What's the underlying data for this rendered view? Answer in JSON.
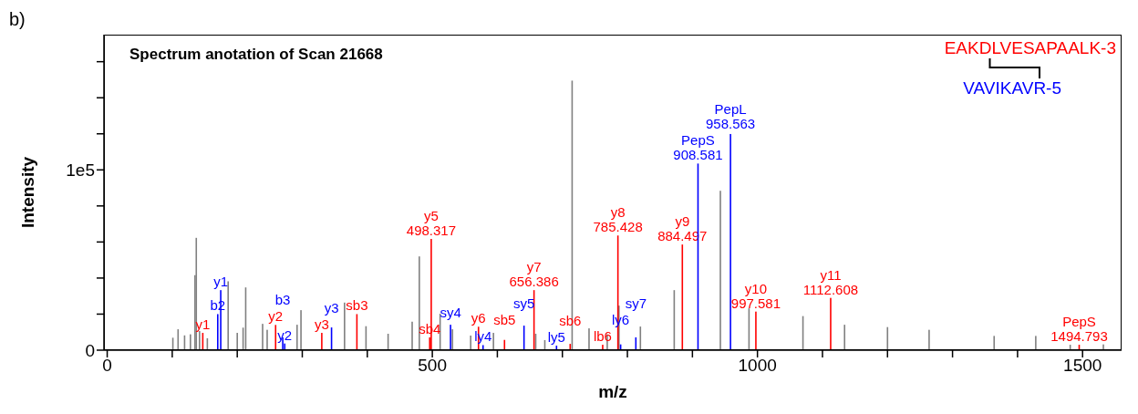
{
  "chart_data": {
    "type": "bar",
    "title": "Spectrum anotation of Scan 21668",
    "xlabel": "m/z",
    "ylabel": "Intensity",
    "annotations": [
      "b)"
    ],
    "legend": "top right",
    "xlim": [
      -5,
      1560
    ],
    "ylim": [
      0,
      175000
    ],
    "xticks": [
      0,
      {
        "value": 100,
        "label": null
      },
      {
        "value": 200,
        "label": null
      },
      {
        "value": 300,
        "label": null
      },
      {
        "value": 400,
        "label": null
      },
      500,
      {
        "value": 600,
        "label": null
      },
      {
        "value": 700,
        "label": null
      },
      {
        "value": 800,
        "label": null
      },
      {
        "value": 900,
        "label": null
      },
      1000,
      {
        "value": 1100,
        "label": null
      },
      {
        "value": 1200,
        "label": null
      },
      {
        "value": 1300,
        "label": null
      },
      {
        "value": 1400,
        "label": null
      },
      1500
    ],
    "yticks": [
      0,
      {
        "value": 20000,
        "label": null
      },
      {
        "value": 40000,
        "label": null
      },
      {
        "value": 60000,
        "label": null
      },
      {
        "value": 80000,
        "label": null
      },
      {
        "value": 100000,
        "label": "1e5"
      },
      {
        "value": 120000,
        "label": null
      },
      {
        "value": 140000,
        "label": null
      },
      {
        "value": 160000,
        "label": null
      }
    ],
    "series": [
      {
        "color": "#808080",
        "x": [
          101,
          109,
          119,
          128,
          135,
          137,
          142,
          154,
          186,
          200,
          209,
          213,
          239,
          246,
          265,
          292,
          298,
          365,
          398,
          432,
          469,
          480,
          512,
          531,
          559,
          594,
          659,
          673,
          715,
          741,
          769,
          787,
          820,
          872,
          943,
          987,
          1070,
          1134,
          1200,
          1264,
          1364,
          1428,
          1481,
          1532
        ],
        "values": [
          6900,
          11600,
          8200,
          8800,
          41600,
          62300,
          10600,
          6600,
          38200,
          9600,
          12500,
          34800,
          14600,
          11300,
          null,
          14100,
          22200,
          26400,
          13300,
          9100,
          15800,
          52000,
          20200,
          11600,
          8100,
          9600,
          9100,
          5600,
          149500,
          12100,
          8800,
          24700,
          13100,
          33300,
          88400,
          23200,
          18900,
          14100,
          12800,
          11300,
          7900,
          7900,
          3000,
          3200
        ]
      },
      {
        "name": "EAKDLVESAPAALK-3",
        "color": "#ff0000",
        "x": [
          147,
          259,
          330,
          384,
          496,
          498.317,
          571,
          611,
          656.386,
          712,
          762,
          785.428,
          884.497,
          997.581,
          1112.608,
          1494.793
        ],
        "values": [
          9600,
          14000,
          9600,
          20000,
          7100,
          61700,
          13000,
          5700,
          33300,
          3500,
          3000,
          63600,
          58600,
          21400,
          29000,
          3000
        ],
        "value_labels": [
          "y1",
          "y2",
          "y3",
          "sb3",
          "sb4",
          "y5\n498.317",
          "y6",
          "sb5",
          "y7\n656.386",
          "sb6",
          "lb6",
          "y8\n785.428",
          "y9\n884.497",
          "y10\n997.581",
          "y11\n1112.608",
          "PepS\n1494.793"
        ]
      },
      {
        "name": "VAVIKAVR-5",
        "color": "#0000ff",
        "x": [
          170,
          174.6,
          270,
          273,
          345,
          528,
          578,
          641,
          691,
          789.6,
          813,
          908.581,
          958.563
        ],
        "values": [
          20000,
          33300,
          7100,
          3700,
          12600,
          14100,
          2800,
          13600,
          2500,
          3200,
          7100,
          103500,
          119900
        ],
        "value_labels": [
          "b2",
          "y1",
          "b3",
          "y2",
          "y3",
          "sy4",
          "ly4",
          "sy5",
          "ly5",
          "ly6",
          "sy7",
          "PepS\n908.581",
          "PepL\n958.563"
        ]
      }
    ]
  }
}
